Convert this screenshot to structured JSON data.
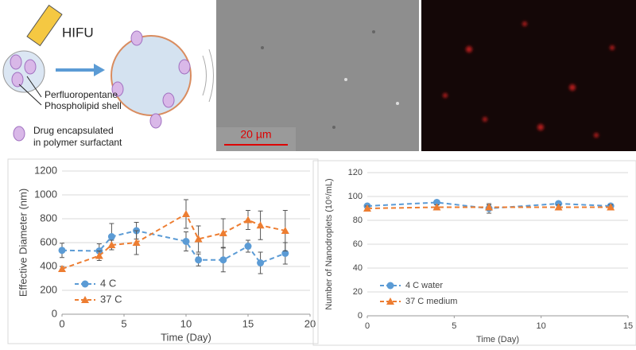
{
  "diagram": {
    "hifu": "HIFU",
    "core": "Perfluoropentane",
    "shell": "Phospholipid shell",
    "drug": [
      "Drug encapsulated",
      "in polymer surfactant"
    ],
    "scale_bar": "20 µm"
  },
  "chart_data": [
    {
      "type": "line",
      "ylabel": "Effective Diameter (nm)",
      "xlabel": "Time (Day)",
      "x": [
        0,
        3,
        4,
        6,
        10,
        11,
        13,
        15,
        16,
        18
      ],
      "series": [
        {
          "name": "4 C",
          "color": "#5b9bd5",
          "marker": "circle",
          "linestyle": "dashed",
          "values": [
            535,
            530,
            650,
            700,
            610,
            455,
            455,
            570,
            430,
            510
          ],
          "errors": [
            60,
            60,
            110,
            70,
            80,
            50,
            100,
            50,
            90,
            90
          ]
        },
        {
          "name": "37 C",
          "color": "#ed7d31",
          "marker": "triangle",
          "linestyle": "dashed",
          "values": [
            380,
            490,
            580,
            600,
            840,
            630,
            680,
            790,
            745,
            700
          ],
          "errors": [
            20,
            40,
            40,
            100,
            120,
            110,
            120,
            80,
            120,
            170
          ]
        }
      ],
      "xlim": [
        0,
        20
      ],
      "xticks": [
        0,
        5,
        10,
        15,
        20
      ],
      "ylim": [
        0,
        1200
      ],
      "yticks": [
        0,
        200,
        400,
        600,
        800,
        1000,
        1200
      ],
      "grid": true,
      "legend": "lower left"
    },
    {
      "type": "line",
      "ylabel": "Number of Nanodroplets (10⁶/mL)",
      "xlabel": "Time (Day)",
      "x": [
        0,
        4,
        7,
        11,
        14
      ],
      "series": [
        {
          "name": "4 C water",
          "color": "#5b9bd5",
          "marker": "circle",
          "linestyle": "dashed",
          "values": [
            92,
            95,
            90,
            94,
            92
          ],
          "errors": [
            2,
            2,
            4,
            2,
            2
          ]
        },
        {
          "name": "37 C medium",
          "color": "#ed7d31",
          "marker": "triangle",
          "linestyle": "dashed",
          "values": [
            90,
            91,
            91,
            91,
            91
          ],
          "errors": [
            2,
            2,
            2,
            2,
            2
          ]
        }
      ],
      "xlim": [
        0,
        15
      ],
      "xticks": [
        0,
        5,
        10,
        15
      ],
      "ylim": [
        0,
        120
      ],
      "yticks": [
        0,
        20,
        40,
        60,
        80,
        100,
        120
      ],
      "grid": true,
      "legend": "lower left"
    }
  ]
}
